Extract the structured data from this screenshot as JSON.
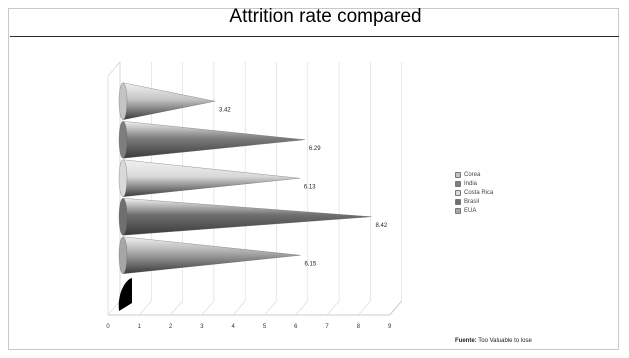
{
  "chart_data": {
    "type": "bar",
    "orientation": "horizontal",
    "shape": "cone-3d",
    "title": "Attrition rate compared",
    "xlabel": "",
    "ylabel": "",
    "xlim": [
      0,
      9
    ],
    "ticks": [
      "0",
      "1",
      "2",
      "3",
      "4",
      "5",
      "6",
      "7",
      "8",
      "9"
    ],
    "grid": true,
    "legend_position": "right",
    "series": [
      {
        "name": "Corea",
        "value": 3.42,
        "label": "3.42",
        "color": "#c4c4c4"
      },
      {
        "name": "India",
        "value": 6.29,
        "label": "6.29",
        "color": "#7e7e7e"
      },
      {
        "name": "Costa Rica",
        "value": 6.13,
        "label": "6.13",
        "color": "#d9d9d9"
      },
      {
        "name": "Brasil",
        "value": 8.42,
        "label": "8.42",
        "color": "#6f6f6f"
      },
      {
        "name": "EUA",
        "value": 6.15,
        "label": "6.15",
        "color": "#a6a6a6"
      }
    ]
  },
  "source": {
    "label": "Fuente:",
    "text": "Too Valuable to lose"
  }
}
